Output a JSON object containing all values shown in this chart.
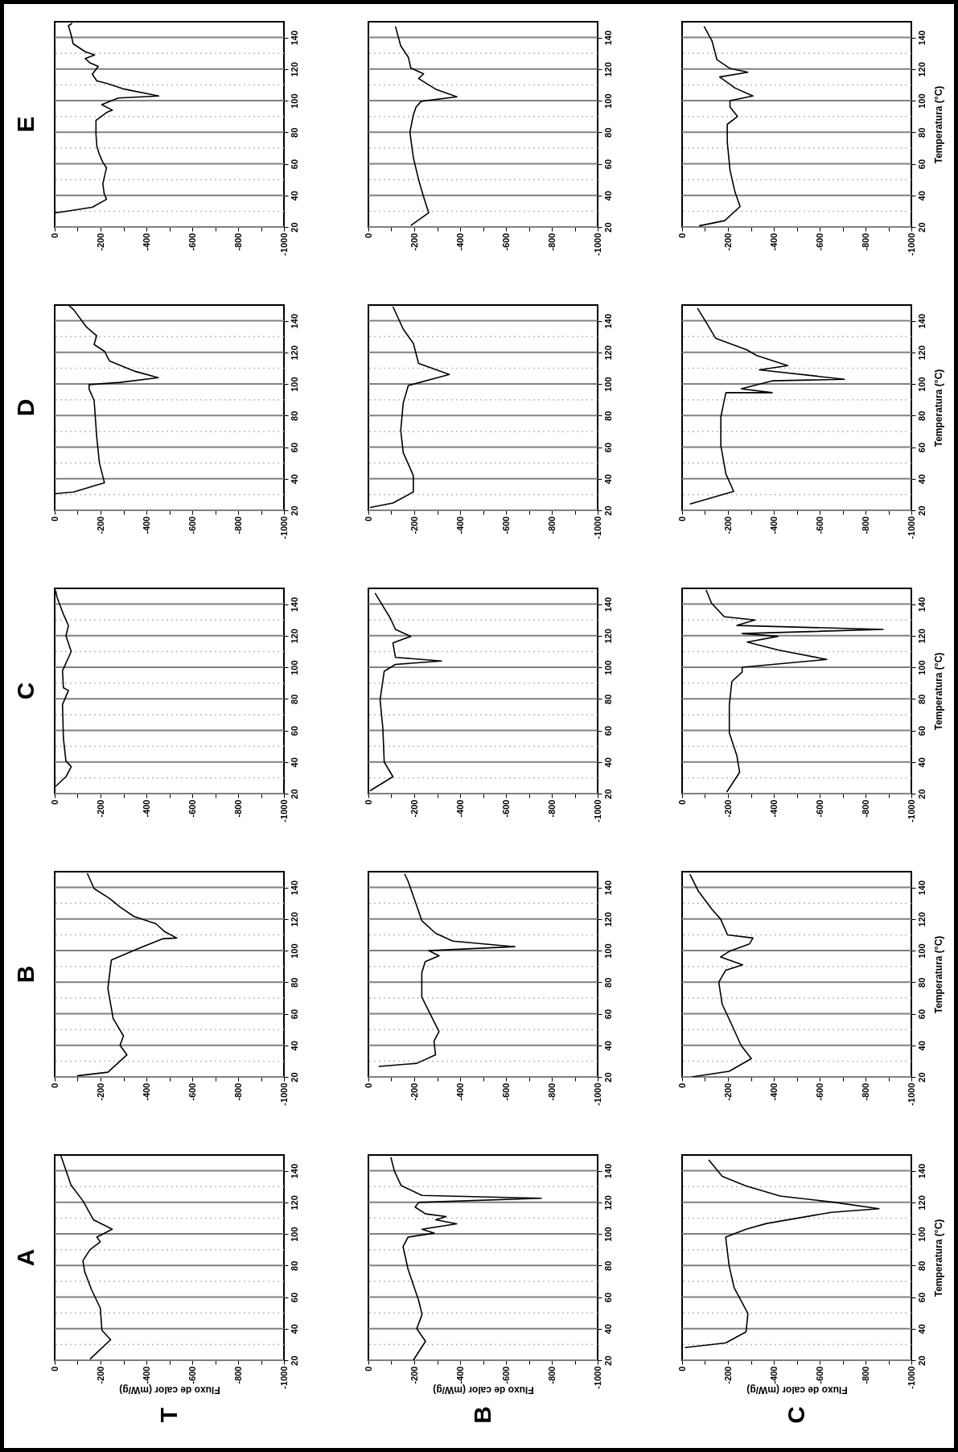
{
  "chart_data": [
    {
      "type": "line",
      "title": "E",
      "x": [
        -3,
        -39,
        -164,
        -226,
        -216,
        -210,
        -226,
        -210,
        -195,
        -184,
        -180,
        -180,
        -226,
        -252,
        -205,
        -278,
        -454,
        -298,
        -226,
        -184,
        -164,
        -190,
        -153,
        -133,
        -174,
        -133,
        -81,
        -70,
        -60,
        -76
      ],
      "series": [
        {
          "color": "#000000",
          "values": [
            29,
            29.7,
            32.5,
            37.5,
            41,
            47.5,
            57.5,
            61,
            66,
            71,
            79,
            87.5,
            92.5,
            94,
            97.5,
            101.7,
            103,
            107.5,
            111,
            112.5,
            116.7,
            121.7,
            124,
            126.7,
            129,
            131,
            136,
            142.5,
            147.5,
            149
          ]
        }
      ],
      "xlim": [
        0,
        -1000
      ],
      "xticks": [
        0,
        {
          "value": -100,
          "label": null
        },
        -200,
        {
          "value": -300,
          "label": null
        },
        -400,
        {
          "value": -500,
          "label": null
        },
        -600,
        {
          "value": -700,
          "label": null
        },
        -800,
        {
          "value": -900,
          "label": null
        },
        -1000
      ],
      "ylim": [
        20,
        150
      ],
      "yticks": [
        20,
        {
          "value": 30,
          "label": null
        },
        40,
        {
          "value": 50,
          "label": null
        },
        60,
        {
          "value": 70,
          "label": null
        },
        80,
        {
          "value": 90,
          "label": null
        },
        100,
        {
          "value": 110,
          "label": null
        },
        120,
        {
          "value": 130,
          "label": null
        },
        140
      ],
      "grid": "y"
    },
    {
      "type": "line",
      "x": [
        -185,
        -263,
        -241,
        -219,
        -196,
        -181,
        -196,
        -208,
        -230,
        -386,
        -297,
        -219,
        -241,
        -185,
        -174,
        -141,
        -118
      ],
      "series": [
        {
          "color": "#000000",
          "values": [
            21,
            29,
            39,
            50,
            64,
            80,
            91,
            96,
            99.6,
            102.5,
            107,
            114,
            117,
            120.7,
            127.6,
            134.7,
            147
          ]
        }
      ],
      "xlim": [
        0,
        -1000
      ],
      "xticks": [
        0,
        {
          "value": -100,
          "label": null
        },
        -200,
        {
          "value": -300,
          "label": null
        },
        -400,
        {
          "value": -500,
          "label": null
        },
        -600,
        {
          "value": -700,
          "label": null
        },
        -800,
        {
          "value": -900,
          "label": null
        },
        -1000
      ],
      "ylim": [
        20,
        150
      ],
      "yticks": [
        20,
        {
          "value": 30,
          "label": null
        },
        40,
        {
          "value": 50,
          "label": null
        },
        60,
        {
          "value": 70,
          "label": null
        },
        80,
        {
          "value": 90,
          "label": null
        },
        100,
        {
          "value": 110,
          "label": null
        },
        120,
        {
          "value": 130,
          "label": null
        },
        140
      ],
      "grid": "y"
    },
    {
      "type": "line",
      "ylabel": "Temperatura (°C)",
      "x": [
        -74,
        -186,
        -253,
        -231,
        -209,
        -197,
        -197,
        -242,
        -209,
        -209,
        -309,
        -231,
        -164,
        -287,
        -209,
        -152,
        -130,
        -96
      ],
      "series": [
        {
          "color": "#000000",
          "values": [
            20.7,
            24,
            33,
            42,
            56,
            74,
            85,
            90,
            96,
            100,
            103,
            108,
            115,
            118,
            120.4,
            126,
            138,
            147
          ]
        }
      ],
      "xlim": [
        0,
        -1000
      ],
      "xticks": [
        0,
        {
          "value": -100,
          "label": null
        },
        -200,
        {
          "value": -300,
          "label": null
        },
        -400,
        {
          "value": -500,
          "label": null
        },
        -600,
        {
          "value": -700,
          "label": null
        },
        -800,
        {
          "value": -900,
          "label": null
        },
        -1000
      ],
      "ylim": [
        20,
        150
      ],
      "yticks": [
        20,
        {
          "value": 30,
          "label": null
        },
        40,
        {
          "value": 50,
          "label": null
        },
        60,
        {
          "value": 70,
          "label": null
        },
        80,
        {
          "value": 90,
          "label": null
        },
        100,
        {
          "value": 110,
          "label": null
        },
        120,
        {
          "value": 130,
          "label": null
        },
        140
      ],
      "grid": "y"
    },
    {
      "type": "line",
      "title": "D",
      "x": [
        -4,
        -83,
        -217,
        -195,
        -183,
        -172,
        -150,
        -150,
        -284,
        -452,
        -351,
        -239,
        -217,
        -172,
        -183,
        -139,
        -83,
        -60
      ],
      "series": [
        {
          "color": "#000000",
          "values": [
            30.6,
            31.6,
            37.5,
            50,
            67,
            89.6,
            96.8,
            99.6,
            101,
            104,
            108,
            114.6,
            120.7,
            125,
            130.6,
            136,
            147,
            150
          ]
        }
      ],
      "xlim": [
        0,
        -1000
      ],
      "xticks": [
        0,
        {
          "value": -100,
          "label": null
        },
        -200,
        {
          "value": -300,
          "label": null
        },
        -400,
        {
          "value": -500,
          "label": null
        },
        -600,
        {
          "value": -700,
          "label": null
        },
        -800,
        {
          "value": -900,
          "label": null
        },
        -1000
      ],
      "ylim": [
        20,
        150
      ],
      "yticks": [
        20,
        {
          "value": 30,
          "label": null
        },
        40,
        {
          "value": 50,
          "label": null
        },
        60,
        {
          "value": 70,
          "label": null
        },
        80,
        {
          "value": 90,
          "label": null
        },
        100,
        {
          "value": 110,
          "label": null
        },
        120,
        {
          "value": 130,
          "label": null
        },
        140
      ],
      "grid": "y"
    },
    {
      "type": "line",
      "x": [
        -7,
        -107,
        -196,
        -196,
        -152,
        -141,
        -152,
        -174,
        -353,
        -219,
        -196,
        -152,
        -107
      ],
      "series": [
        {
          "color": "#000000",
          "values": [
            21.8,
            24.6,
            31.6,
            42,
            56.5,
            70.6,
            88,
            99,
            106,
            113,
            125.8,
            134.7,
            149
          ]
        }
      ],
      "xlim": [
        0,
        -1000
      ],
      "xticks": [
        0,
        {
          "value": -100,
          "label": null
        },
        -200,
        {
          "value": -300,
          "label": null
        },
        -400,
        {
          "value": -500,
          "label": null
        },
        -600,
        {
          "value": -700,
          "label": null
        },
        -800,
        {
          "value": -900,
          "label": null
        },
        -1000
      ],
      "ylim": [
        20,
        150
      ],
      "yticks": [
        20,
        {
          "value": 30,
          "label": null
        },
        40,
        {
          "value": 50,
          "label": null
        },
        60,
        {
          "value": 70,
          "label": null
        },
        80,
        {
          "value": 90,
          "label": null
        },
        100,
        {
          "value": 110,
          "label": null
        },
        120,
        {
          "value": 130,
          "label": null
        },
        140
      ],
      "grid": "y"
    },
    {
      "type": "line",
      "ylabel": "Temperatura (°C)",
      "x": [
        -34,
        -225,
        -191,
        -169,
        -169,
        -180,
        -191,
        -393,
        -258,
        -393,
        -708,
        -337,
        -461,
        -326,
        -281,
        -146,
        -101,
        -67
      ],
      "series": [
        {
          "color": "#000000",
          "values": [
            24,
            32,
            43,
            61,
            79,
            87,
            94.5,
            94.5,
            97,
            102,
            103,
            109,
            111.6,
            118,
            121.7,
            129,
            140,
            148
          ]
        }
      ],
      "xlim": [
        0,
        -1000
      ],
      "xticks": [
        0,
        {
          "value": -100,
          "label": null
        },
        -200,
        {
          "value": -300,
          "label": null
        },
        -400,
        {
          "value": -500,
          "label": null
        },
        -600,
        {
          "value": -700,
          "label": null
        },
        -800,
        {
          "value": -900,
          "label": null
        },
        -1000
      ],
      "ylim": [
        20,
        150
      ],
      "yticks": [
        20,
        {
          "value": 30,
          "label": null
        },
        40,
        {
          "value": 50,
          "label": null
        },
        60,
        {
          "value": 70,
          "label": null
        },
        80,
        {
          "value": 90,
          "label": null
        },
        100,
        {
          "value": 110,
          "label": null
        },
        120,
        {
          "value": 130,
          "label": null
        },
        140
      ],
      "grid": "y"
    },
    {
      "type": "line",
      "title": "C",
      "x": [
        -4,
        -49,
        -72,
        -49,
        -38,
        -34,
        -60,
        -38,
        -34,
        -72,
        -49,
        -60,
        -38,
        -11,
        -4
      ],
      "series": [
        {
          "color": "#000000",
          "values": [
            24.6,
            30.7,
            37,
            40.7,
            55,
            76.4,
            85.3,
            87,
            97.8,
            110,
            120,
            126.4,
            133.6,
            144,
            148.6
          ]
        }
      ],
      "xlim": [
        0,
        -1000
      ],
      "xticks": [
        0,
        {
          "value": -100,
          "label": null
        },
        -200,
        {
          "value": -300,
          "label": null
        },
        -400,
        {
          "value": -500,
          "label": null
        },
        -600,
        {
          "value": -700,
          "label": null
        },
        -800,
        {
          "value": -900,
          "label": null
        },
        -1000
      ],
      "ylim": [
        20,
        150
      ],
      "yticks": [
        20,
        {
          "value": 30,
          "label": null
        },
        40,
        {
          "value": 50,
          "label": null
        },
        60,
        {
          "value": 70,
          "label": null
        },
        80,
        {
          "value": 90,
          "label": null
        },
        100,
        {
          "value": 110,
          "label": null
        },
        120,
        {
          "value": 130,
          "label": null
        },
        140
      ],
      "grid": "y"
    },
    {
      "type": "line",
      "x": [
        -7,
        -107,
        -69,
        -63,
        -51,
        -69,
        -118,
        -319,
        -118,
        -107,
        -185,
        -118,
        -96,
        -29
      ],
      "series": [
        {
          "color": "#000000",
          "values": [
            21.8,
            30.7,
            40,
            61.4,
            79.3,
            97.5,
            101.8,
            104,
            106.3,
            115.4,
            119.6,
            124,
            131,
            147
          ]
        }
      ],
      "xlim": [
        0,
        -1000
      ],
      "xticks": [
        0,
        {
          "value": -100,
          "label": null
        },
        -200,
        {
          "value": -300,
          "label": null
        },
        -400,
        {
          "value": -500,
          "label": null
        },
        -600,
        {
          "value": -700,
          "label": null
        },
        -800,
        {
          "value": -900,
          "label": null
        },
        -1000
      ],
      "ylim": [
        20,
        150
      ],
      "yticks": [
        20,
        {
          "value": 30,
          "label": null
        },
        40,
        {
          "value": 50,
          "label": null
        },
        60,
        {
          "value": 70,
          "label": null
        },
        80,
        {
          "value": 90,
          "label": null
        },
        100,
        {
          "value": 110,
          "label": null
        },
        120,
        {
          "value": 130,
          "label": null
        },
        140
      ],
      "grid": "y"
    },
    {
      "type": "line",
      "ylabel": "Temperatura (°C)",
      "x": [
        -195,
        -251,
        -239,
        -206,
        -206,
        -217,
        -262,
        -262,
        -631,
        -418,
        -284,
        -418,
        -262,
        -877,
        -239,
        -318,
        -184,
        -128,
        -105
      ],
      "series": [
        {
          "color": "#000000",
          "values": [
            21,
            33.5,
            44,
            58.5,
            76,
            91,
            97,
            100,
            105,
            111,
            116,
            119.6,
            121.4,
            124,
            126.5,
            130,
            132,
            140.7,
            149
          ]
        }
      ],
      "xlim": [
        0,
        -1000
      ],
      "xticks": [
        0,
        {
          "value": -100,
          "label": null
        },
        -200,
        {
          "value": -300,
          "label": null
        },
        -400,
        {
          "value": -500,
          "label": null
        },
        -600,
        {
          "value": -700,
          "label": null
        },
        -800,
        {
          "value": -900,
          "label": null
        },
        -1000
      ],
      "ylim": [
        20,
        150
      ],
      "yticks": [
        20,
        {
          "value": 30,
          "label": null
        },
        40,
        {
          "value": 50,
          "label": null
        },
        60,
        {
          "value": 70,
          "label": null
        },
        80,
        {
          "value": 90,
          "label": null
        },
        100,
        {
          "value": 110,
          "label": null
        },
        120,
        {
          "value": 130,
          "label": null
        },
        140
      ],
      "grid": "y"
    },
    {
      "type": "line",
      "title": "B",
      "x": [
        -97,
        -232,
        -315,
        -285,
        -300,
        -255,
        -232,
        -247,
        -367,
        -472,
        -532,
        -480,
        -442,
        -345,
        -285,
        -240,
        -172,
        -142
      ],
      "series": [
        {
          "color": "#000000",
          "values": [
            20.7,
            23,
            34,
            40,
            46,
            57,
            76,
            94,
            101.4,
            107.5,
            108,
            112,
            117,
            121.7,
            127.6,
            133,
            139.3,
            149
          ]
        }
      ],
      "xlim": [
        0,
        -1000
      ],
      "xticks": [
        0,
        {
          "value": -100,
          "label": null
        },
        -200,
        {
          "value": -300,
          "label": null
        },
        -400,
        {
          "value": -500,
          "label": null
        },
        -600,
        {
          "value": -700,
          "label": null
        },
        -800,
        {
          "value": -900,
          "label": null
        },
        -1000
      ],
      "ylim": [
        20,
        150
      ],
      "yticks": [
        20,
        {
          "value": 30,
          "label": null
        },
        40,
        {
          "value": 50,
          "label": null
        },
        60,
        {
          "value": 70,
          "label": null
        },
        80,
        {
          "value": 90,
          "label": null
        },
        100,
        {
          "value": 110,
          "label": null
        },
        120,
        {
          "value": 130,
          "label": null
        },
        140
      ],
      "grid": "y"
    },
    {
      "type": "line",
      "x": [
        -45,
        -211,
        -293,
        -286,
        -308,
        -233,
        -233,
        -248,
        -308,
        -263,
        -639,
        -368,
        -293,
        -233,
        -203,
        -173,
        -158
      ],
      "series": [
        {
          "color": "#000000",
          "values": [
            26.6,
            28.6,
            34,
            42.6,
            48.7,
            70.5,
            86,
            93,
            96.7,
            100,
            102.5,
            106,
            111,
            119,
            131.6,
            144,
            148.6
          ]
        }
      ],
      "xlim": [
        0,
        -1000
      ],
      "xticks": [
        0,
        {
          "value": -100,
          "label": null
        },
        -200,
        {
          "value": -300,
          "label": null
        },
        -400,
        {
          "value": -500,
          "label": null
        },
        -600,
        {
          "value": -700,
          "label": null
        },
        -800,
        {
          "value": -900,
          "label": null
        },
        -1000
      ],
      "ylim": [
        20,
        150
      ],
      "yticks": [
        20,
        {
          "value": 30,
          "label": null
        },
        40,
        {
          "value": 50,
          "label": null
        },
        60,
        {
          "value": 70,
          "label": null
        },
        80,
        {
          "value": 90,
          "label": null
        },
        100,
        {
          "value": 110,
          "label": null
        },
        120,
        {
          "value": 130,
          "label": null
        },
        140
      ],
      "grid": "y"
    },
    {
      "type": "line",
      "ylabel": "Temperatura (°C)",
      "x": [
        -42,
        -205,
        -302,
        -257,
        -220,
        -175,
        -160,
        -190,
        -264,
        -168,
        -205,
        -294,
        -309,
        -198,
        -168,
        -131,
        -71,
        -34
      ],
      "series": [
        {
          "color": "#000000",
          "values": [
            20,
            23.6,
            31.6,
            40,
            52,
            66,
            80,
            87.6,
            91,
            96,
            99.5,
            104.3,
            108,
            110,
            120,
            126,
            137.6,
            148.4
          ]
        }
      ],
      "xlim": [
        0,
        -1000
      ],
      "xticks": [
        0,
        {
          "value": -100,
          "label": null
        },
        -200,
        {
          "value": -300,
          "label": null
        },
        -400,
        {
          "value": -500,
          "label": null
        },
        -600,
        {
          "value": -700,
          "label": null
        },
        -800,
        {
          "value": -900,
          "label": null
        },
        -1000
      ],
      "ylim": [
        20,
        150
      ],
      "yticks": [
        20,
        {
          "value": 30,
          "label": null
        },
        40,
        {
          "value": 50,
          "label": null
        },
        60,
        {
          "value": 70,
          "label": null
        },
        80,
        {
          "value": 90,
          "label": null
        },
        100,
        {
          "value": 110,
          "label": null
        },
        120,
        {
          "value": 130,
          "label": null
        },
        140
      ],
      "grid": "y"
    },
    {
      "type": "line",
      "title": "A",
      "xlabel": "Fluxo de calor (mW/g)",
      "annotations": [
        "T"
      ],
      "x": [
        -154,
        -244,
        -206,
        -199,
        -161,
        -131,
        -123,
        -154,
        -199,
        -184,
        -251,
        -169,
        -123,
        -71,
        -26
      ],
      "series": [
        {
          "color": "#000000",
          "values": [
            20.7,
            33,
            39,
            53,
            64.6,
            76,
            83,
            90,
            95,
            98,
            103,
            109,
            121,
            131,
            150
          ]
        }
      ],
      "xlim": [
        0,
        -1000
      ],
      "xticks": [
        0,
        {
          "value": -100,
          "label": null
        },
        -200,
        {
          "value": -300,
          "label": null
        },
        -400,
        {
          "value": -500,
          "label": null
        },
        -600,
        {
          "value": -700,
          "label": null
        },
        -800,
        {
          "value": -900,
          "label": null
        },
        -1000
      ],
      "ylim": [
        20,
        150
      ],
      "yticks": [
        20,
        {
          "value": 30,
          "label": null
        },
        40,
        {
          "value": 50,
          "label": null
        },
        60,
        {
          "value": 70,
          "label": null
        },
        80,
        {
          "value": 90,
          "label": null
        },
        100,
        {
          "value": 110,
          "label": null
        },
        120,
        {
          "value": 130,
          "label": null
        },
        140
      ],
      "grid": "y"
    },
    {
      "type": "line",
      "xlabel": "Fluxo de calor (mW/g)",
      "annotations": [
        "B"
      ],
      "x": [
        -196,
        -249,
        -211,
        -234,
        -219,
        -173,
        -151,
        -173,
        -287,
        -234,
        -385,
        -294,
        -339,
        -249,
        -204,
        -219,
        -754,
        -234,
        -143,
        -113,
        -98
      ],
      "series": [
        {
          "color": "#000000",
          "values": [
            20,
            32,
            40,
            49,
            58,
            77.6,
            92,
            98,
            100.5,
            103,
            106.4,
            109,
            111,
            112.7,
            117,
            120,
            122.6,
            124.4,
            130.6,
            140,
            148.6
          ]
        }
      ],
      "xlim": [
        0,
        -1000
      ],
      "xticks": [
        0,
        {
          "value": -100,
          "label": null
        },
        -200,
        {
          "value": -300,
          "label": null
        },
        -400,
        {
          "value": -500,
          "label": null
        },
        -600,
        {
          "value": -700,
          "label": null
        },
        -800,
        {
          "value": -900,
          "label": null
        },
        -1000
      ],
      "ylim": [
        20,
        150
      ],
      "yticks": [
        20,
        {
          "value": 30,
          "label": null
        },
        40,
        {
          "value": 50,
          "label": null
        },
        60,
        {
          "value": 70,
          "label": null
        },
        80,
        {
          "value": 90,
          "label": null
        },
        100,
        {
          "value": 110,
          "label": null
        },
        120,
        {
          "value": 130,
          "label": null
        },
        140
      ],
      "grid": "y"
    },
    {
      "type": "line",
      "xlabel": "Fluxo de calor (mW/g)",
      "ylabel": "Temperatura (°C)",
      "annotations": [
        "C"
      ],
      "x": [
        -12,
        -190,
        -279,
        -287,
        -227,
        -205,
        -190,
        -279,
        -368,
        -651,
        -859,
        -666,
        -428,
        -279,
        -175,
        -116
      ],
      "series": [
        {
          "color": "#000000",
          "values": [
            28,
            31,
            38,
            49.6,
            66,
            80,
            98,
            103,
            106.6,
            113.7,
            116,
            120,
            124,
            130.4,
            136.5,
            147
          ]
        }
      ],
      "xlim": [
        0,
        -1000
      ],
      "xticks": [
        0,
        {
          "value": -100,
          "label": null
        },
        -200,
        {
          "value": -300,
          "label": null
        },
        -400,
        {
          "value": -500,
          "label": null
        },
        -600,
        {
          "value": -700,
          "label": null
        },
        -800,
        {
          "value": -900,
          "label": null
        },
        -1000
      ],
      "ylim": [
        20,
        150
      ],
      "yticks": [
        20,
        {
          "value": 30,
          "label": null
        },
        40,
        {
          "value": 50,
          "label": null
        },
        60,
        {
          "value": 70,
          "label": null
        },
        80,
        {
          "value": 90,
          "label": null
        },
        100,
        {
          "value": 110,
          "label": null
        },
        120,
        {
          "value": 130,
          "label": null
        },
        140
      ],
      "grid": "y"
    }
  ]
}
